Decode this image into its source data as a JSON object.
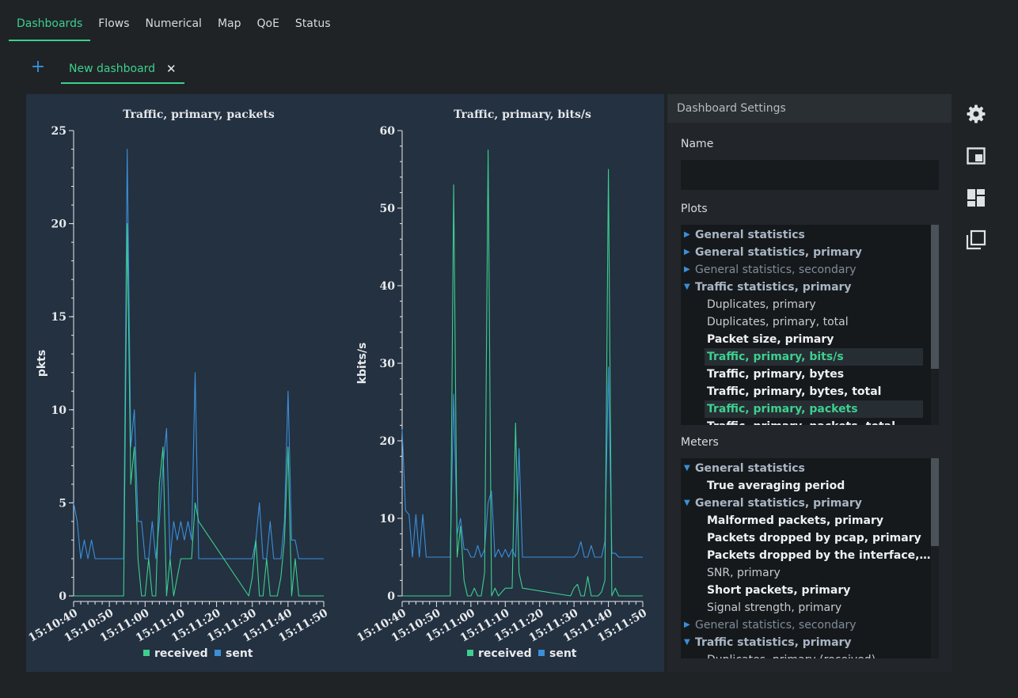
{
  "nav": {
    "items": [
      {
        "label": "Dashboards",
        "active": true
      },
      {
        "label": "Flows",
        "active": false
      },
      {
        "label": "Numerical",
        "active": false
      },
      {
        "label": "Map",
        "active": false
      },
      {
        "label": "QoE",
        "active": false
      },
      {
        "label": "Status",
        "active": false
      }
    ]
  },
  "tabs": {
    "add_icon": "plus-icon",
    "add_glyph": "+",
    "items": [
      {
        "label": "New dashboard",
        "close_glyph": "✕"
      }
    ]
  },
  "colors": {
    "received": "#3ecf8e",
    "sent": "#3b8fd9",
    "accent": "#3ecf8e",
    "plot_bg": "#233141"
  },
  "chart_data": [
    {
      "type": "line",
      "title": "Traffic, primary, packets",
      "xlabel": "",
      "ylabel": "pkts",
      "ylim": [
        0,
        25
      ],
      "yticks": [
        0,
        5,
        10,
        15,
        20,
        25
      ],
      "xlim": [
        "15:10:40",
        "15:11:50"
      ],
      "xticks": [
        "15:10:40",
        "15:10:50",
        "15:11:00",
        "15:11:10",
        "15:11:20",
        "15:11:30",
        "15:11:40",
        "15:11:50"
      ],
      "legend": "bottom-center",
      "grid": false,
      "series": [
        {
          "name": "received",
          "color": "#3ecf8e",
          "x": [
            "15:10:40",
            "15:10:54",
            "15:10:55",
            "15:10:56",
            "15:10:57",
            "15:10:58",
            "15:10:59",
            "15:11:00",
            "15:11:01",
            "15:11:02",
            "15:11:03",
            "15:11:04",
            "15:11:05",
            "15:11:06",
            "15:11:07",
            "15:11:08",
            "15:11:09",
            "15:11:10",
            "15:11:11",
            "15:11:12",
            "15:11:13",
            "15:11:14",
            "15:11:15",
            "15:11:29",
            "15:11:30",
            "15:11:31",
            "15:11:32",
            "15:11:33",
            "15:11:34",
            "15:11:35",
            "15:11:36",
            "15:11:37",
            "15:11:38",
            "15:11:39",
            "15:11:40",
            "15:11:41",
            "15:11:42",
            "15:11:43",
            "15:11:50"
          ],
          "y": [
            0,
            0,
            20,
            6,
            8,
            2,
            0,
            0,
            2,
            0,
            0,
            6,
            8,
            0,
            2,
            0,
            1,
            2,
            2,
            2,
            2,
            5,
            4,
            0,
            1,
            3,
            0,
            0,
            2,
            0,
            0,
            0,
            1,
            3,
            8,
            0,
            2,
            0,
            0
          ]
        },
        {
          "name": "sent",
          "color": "#3b8fd9",
          "x": [
            "15:10:40",
            "15:10:41",
            "15:10:42",
            "15:10:43",
            "15:10:44",
            "15:10:45",
            "15:10:46",
            "15:10:47",
            "15:10:54",
            "15:10:55",
            "15:10:56",
            "15:10:57",
            "15:10:58",
            "15:10:59",
            "15:11:00",
            "15:11:01",
            "15:11:02",
            "15:11:03",
            "15:11:04",
            "15:11:05",
            "15:11:06",
            "15:11:07",
            "15:11:08",
            "15:11:09",
            "15:11:10",
            "15:11:11",
            "15:11:12",
            "15:11:13",
            "15:11:14",
            "15:11:15",
            "15:11:30",
            "15:11:31",
            "15:11:32",
            "15:11:33",
            "15:11:34",
            "15:11:35",
            "15:11:36",
            "15:11:37",
            "15:11:38",
            "15:11:39",
            "15:11:40",
            "15:11:41",
            "15:11:42",
            "15:11:43",
            "15:11:44",
            "15:11:50"
          ],
          "y": [
            5,
            4,
            2,
            3,
            2,
            3,
            2,
            2,
            2,
            24,
            8,
            10,
            4,
            4,
            2,
            2,
            4,
            2,
            4,
            7,
            9,
            2,
            4,
            3,
            4,
            3,
            4,
            3,
            12,
            2,
            2,
            3,
            5,
            2,
            2,
            4,
            2,
            2,
            2,
            4,
            11,
            3,
            3,
            2,
            2,
            2
          ]
        }
      ]
    },
    {
      "type": "line",
      "title": "Traffic, primary, bits/s",
      "xlabel": "",
      "ylabel": "kbits/s",
      "ylim": [
        0,
        60
      ],
      "yticks": [
        0,
        10,
        20,
        30,
        40,
        50,
        60
      ],
      "xlim": [
        "15:10:40",
        "15:11:50"
      ],
      "xticks": [
        "15:10:40",
        "15:10:50",
        "15:11:00",
        "15:11:10",
        "15:11:20",
        "15:11:30",
        "15:11:40",
        "15:11:50"
      ],
      "legend": "bottom-center",
      "grid": false,
      "series": [
        {
          "name": "received",
          "color": "#3ecf8e",
          "x": [
            "15:10:40",
            "15:10:54",
            "15:10:55",
            "15:10:56",
            "15:10:57",
            "15:10:58",
            "15:10:59",
            "15:11:00",
            "15:11:01",
            "15:11:02",
            "15:11:03",
            "15:11:04",
            "15:11:05",
            "15:11:06",
            "15:11:07",
            "15:11:08",
            "15:11:09",
            "15:11:10",
            "15:11:11",
            "15:11:12",
            "15:11:13",
            "15:11:14",
            "15:11:15",
            "15:11:29",
            "15:11:30",
            "15:11:31",
            "15:11:32",
            "15:11:33",
            "15:11:34",
            "15:11:35",
            "15:11:36",
            "15:11:37",
            "15:11:38",
            "15:11:39",
            "15:11:40",
            "15:11:41",
            "15:11:42",
            "15:11:43",
            "15:11:50"
          ],
          "y": [
            0,
            0,
            53,
            5,
            9,
            2,
            0,
            0,
            1,
            0,
            0,
            3,
            57.5,
            0,
            1,
            0,
            0.5,
            1,
            1,
            1,
            22.3,
            3,
            1,
            0,
            1,
            1.5,
            0,
            0,
            2.5,
            0,
            0,
            0,
            0.5,
            2,
            55,
            0,
            1,
            0,
            0
          ]
        },
        {
          "name": "sent",
          "color": "#3b8fd9",
          "x": [
            "15:10:40",
            "15:10:41",
            "15:10:42",
            "15:10:43",
            "15:10:44",
            "15:10:45",
            "15:10:46",
            "15:10:47",
            "15:10:54",
            "15:10:55",
            "15:10:56",
            "15:10:57",
            "15:10:58",
            "15:10:59",
            "15:11:00",
            "15:11:01",
            "15:11:02",
            "15:11:03",
            "15:11:04",
            "15:11:05",
            "15:11:06",
            "15:11:07",
            "15:11:08",
            "15:11:09",
            "15:11:10",
            "15:11:11",
            "15:11:12",
            "15:11:13",
            "15:11:14",
            "15:11:15",
            "15:11:30",
            "15:11:31",
            "15:11:32",
            "15:11:33",
            "15:11:34",
            "15:11:35",
            "15:11:36",
            "15:11:37",
            "15:11:38",
            "15:11:39",
            "15:11:40",
            "15:11:41",
            "15:11:42",
            "15:11:43",
            "15:11:44",
            "15:11:50"
          ],
          "y": [
            21.5,
            11,
            10.5,
            5,
            10.5,
            5,
            10.5,
            5,
            5,
            26,
            8,
            10,
            6,
            6,
            5,
            5,
            6.5,
            5,
            6,
            12,
            13.5,
            5,
            6,
            5,
            6,
            5,
            6,
            5,
            19,
            5,
            5,
            5.5,
            7,
            5,
            5,
            6.5,
            5,
            5,
            5,
            7,
            29.5,
            5.5,
            5.5,
            5,
            5,
            5
          ]
        }
      ]
    }
  ],
  "settings": {
    "header": "Dashboard Settings",
    "name_label": "Name",
    "name_value": "",
    "plots_label": "Plots",
    "meters_label": "Meters",
    "plots_tree": [
      {
        "kind": "cat",
        "label": "General statistics",
        "expanded": false,
        "bold": true
      },
      {
        "kind": "cat",
        "label": "General statistics, primary",
        "expanded": false,
        "bold": true
      },
      {
        "kind": "cat",
        "label": "General statistics, secondary",
        "expanded": false,
        "bold": false
      },
      {
        "kind": "cat",
        "label": "Traffic statistics, primary",
        "expanded": true,
        "bold": true
      },
      {
        "kind": "leaf",
        "label": "Duplicates, primary",
        "bold": false
      },
      {
        "kind": "leaf",
        "label": "Duplicates, primary, total",
        "bold": false
      },
      {
        "kind": "leaf",
        "label": "Packet size, primary",
        "bold": true
      },
      {
        "kind": "leaf",
        "label": "Traffic, primary, bits/s",
        "bold": true,
        "selected": true
      },
      {
        "kind": "leaf",
        "label": "Traffic, primary, bytes",
        "bold": true
      },
      {
        "kind": "leaf",
        "label": "Traffic, primary, bytes, total",
        "bold": true
      },
      {
        "kind": "leaf",
        "label": "Traffic, primary, packets",
        "bold": true,
        "selected": true
      },
      {
        "kind": "leaf",
        "label": "Traffic, primary, packets, total",
        "bold": true
      }
    ],
    "meters_tree": [
      {
        "kind": "cat",
        "label": "General statistics",
        "expanded": true,
        "bold": true
      },
      {
        "kind": "leaf",
        "label": "True averaging period",
        "bold": true
      },
      {
        "kind": "cat",
        "label": "General statistics, primary",
        "expanded": true,
        "bold": true
      },
      {
        "kind": "leaf",
        "label": "Malformed packets, primary",
        "bold": true
      },
      {
        "kind": "leaf",
        "label": "Packets dropped by pcap, primary",
        "bold": true
      },
      {
        "kind": "leaf",
        "label": "Packets dropped by the interface, pri...",
        "bold": true
      },
      {
        "kind": "leaf",
        "label": "SNR, primary",
        "bold": false
      },
      {
        "kind": "leaf",
        "label": "Short packets, primary",
        "bold": true
      },
      {
        "kind": "leaf",
        "label": "Signal strength, primary",
        "bold": false
      },
      {
        "kind": "cat",
        "label": "General statistics, secondary",
        "expanded": false,
        "bold": false
      },
      {
        "kind": "cat",
        "label": "Traffic statistics, primary",
        "expanded": true,
        "bold": true
      },
      {
        "kind": "leaf",
        "label": "Duplicates, primary (received)",
        "bold": false
      }
    ],
    "plots_scroll_fraction": 0.72,
    "meters_scroll_fraction": 0.44
  },
  "side_icons": [
    "gear-icon",
    "window-icon",
    "dashboard-layout-icon",
    "duplicate-icon"
  ]
}
